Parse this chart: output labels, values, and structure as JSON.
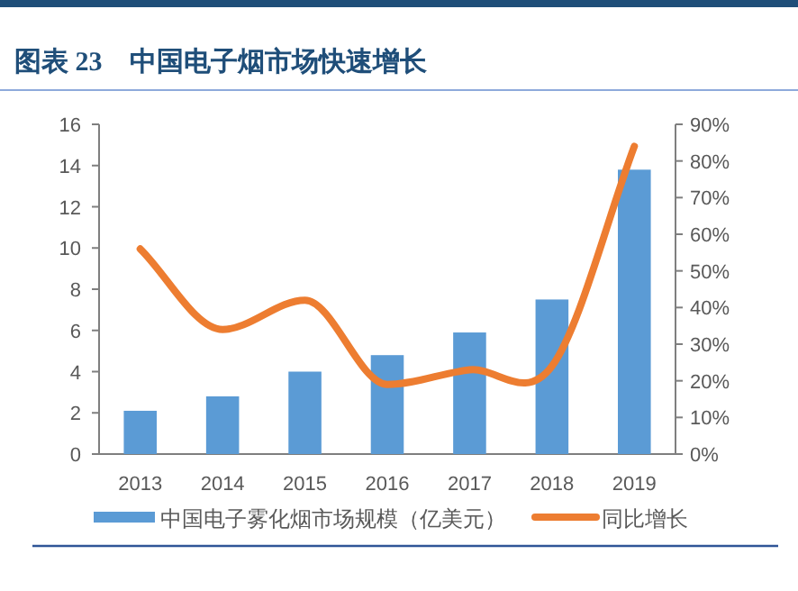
{
  "chart_data": {
    "type": "bar",
    "title": "图表 23　中国电子烟市场快速增长",
    "categories": [
      "2013",
      "2014",
      "2015",
      "2016",
      "2017",
      "2018",
      "2019"
    ],
    "series": [
      {
        "name": "中国电子雾化烟市场规模（亿美元）",
        "color": "#5b9bd5",
        "values": [
          2.1,
          2.8,
          4.0,
          4.8,
          5.9,
          7.5,
          13.8
        ]
      },
      {
        "name": "同比增长",
        "type": "line",
        "axis": "y2",
        "color": "#ed7d31",
        "values": [
          56,
          34,
          42,
          19,
          23,
          24,
          84
        ]
      }
    ],
    "ylim": [
      0,
      16
    ],
    "yticks": [
      0,
      2,
      4,
      6,
      8,
      10,
      12,
      14,
      16
    ],
    "y2lim": [
      0,
      90
    ],
    "y2ticks": [
      {
        "value": 0,
        "label": "0%"
      },
      {
        "value": 10,
        "label": "10%"
      },
      {
        "value": 20,
        "label": "20%"
      },
      {
        "value": 30,
        "label": "30%"
      },
      {
        "value": 40,
        "label": "40%"
      },
      {
        "value": 50,
        "label": "50%"
      },
      {
        "value": 60,
        "label": "60%"
      },
      {
        "value": 70,
        "label": "70%"
      },
      {
        "value": 80,
        "label": "80%"
      },
      {
        "value": 90,
        "label": "90%"
      }
    ],
    "grid": false,
    "legend": "bottom",
    "marker": "none",
    "line_style": "solid"
  }
}
